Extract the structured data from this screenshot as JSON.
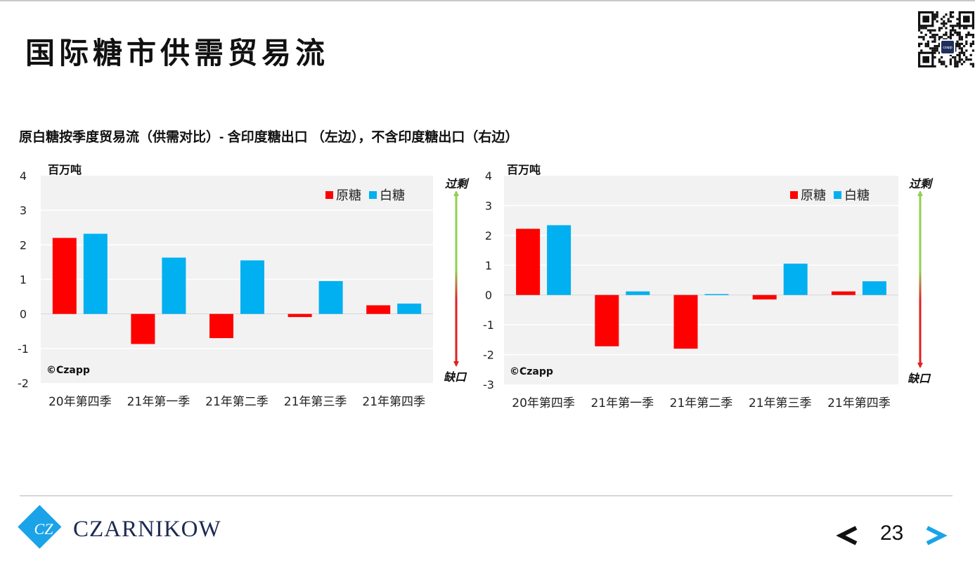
{
  "page": {
    "title": "国际糖市供需贸易流",
    "subtitle": "原白糖按季度贸易流（供需对比）- 含印度糖出口 （左边），不含印度糖出口（右边）",
    "page_number": "23",
    "logo_text": "CZARNIKOW",
    "logo_mark": "CZ",
    "qr_badge": "czapp"
  },
  "colors": {
    "raw": "#ff0000",
    "white": "#00b0f0",
    "plot_bg": "#f2f2f2",
    "arrow_surplus": "#92d050",
    "arrow_deficit": "#e02020",
    "nav_next": "#1aa3e8"
  },
  "chart_data": [
    {
      "type": "bar",
      "unit": "百万吨",
      "categories": [
        "20年第四季",
        "21年第一季",
        "21年第二季",
        "21年第三季",
        "21年第四季"
      ],
      "series": [
        {
          "name": "原糖",
          "values": [
            2.2,
            -0.87,
            -0.7,
            -0.09,
            0.25
          ]
        },
        {
          "name": "白糖",
          "values": [
            2.32,
            1.63,
            1.55,
            0.95,
            0.3
          ]
        }
      ],
      "ylim": [
        -2,
        4
      ],
      "yticks": [
        "4",
        "3",
        "2",
        "1",
        "0",
        "-1",
        "-2"
      ],
      "grid": true,
      "legend": "top-right",
      "watermark": "©Czapp",
      "arrow_top_label": "过剩",
      "arrow_bottom_label": "缺口"
    },
    {
      "type": "bar",
      "unit": "百万吨",
      "categories": [
        "20年第四季",
        "21年第一季",
        "21年第二季",
        "21年第三季",
        "21年第四季"
      ],
      "series": [
        {
          "name": "原糖",
          "values": [
            2.22,
            -1.72,
            -1.8,
            -0.15,
            0.12
          ]
        },
        {
          "name": "白糖",
          "values": [
            2.34,
            0.12,
            0.03,
            1.05,
            0.46
          ]
        }
      ],
      "ylim": [
        -3,
        4
      ],
      "yticks": [
        "4",
        "3",
        "2",
        "1",
        "0",
        "-1",
        "-2",
        "-3"
      ],
      "grid": true,
      "legend": "top-right",
      "watermark": "©Czapp",
      "arrow_top_label": "过剩",
      "arrow_bottom_label": "缺口"
    }
  ]
}
